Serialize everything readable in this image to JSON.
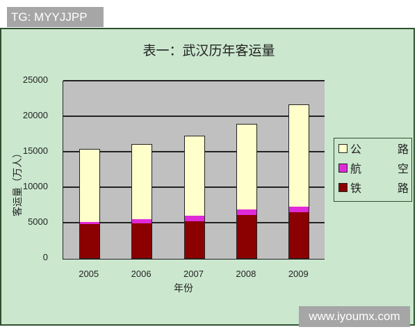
{
  "watermark_top": "TG: MYYJJPP",
  "watermark_bottom": "www.iyoumx.com",
  "colors": {
    "highway": "#ffffcc",
    "air": "#e02ad9",
    "rail": "#8b0000",
    "plot_bg": "#c0c0c0",
    "panel_bg": "#cbe8cf"
  },
  "legend": [
    {
      "name": "highway",
      "label_a": "公",
      "label_b": "路",
      "color": "#ffffcc"
    },
    {
      "name": "air",
      "label_a": "航",
      "label_b": "空",
      "color": "#e02ad9"
    },
    {
      "name": "rail",
      "label_a": "铁",
      "label_b": "路",
      "color": "#8b0000"
    }
  ],
  "chart_data": {
    "type": "bar",
    "stacked": true,
    "title": "表一：武汉历年客运量",
    "xlabel": "年份",
    "ylabel": "客运量（万人）",
    "categories": [
      "2005",
      "2006",
      "2007",
      "2008",
      "2009"
    ],
    "series": [
      {
        "name": "铁路",
        "values": [
          4800,
          4900,
          5200,
          6100,
          6500
        ]
      },
      {
        "name": "航空",
        "values": [
          300,
          600,
          800,
          800,
          800
        ]
      },
      {
        "name": "公路",
        "values": [
          10400,
          10700,
          11400,
          12100,
          14500
        ]
      }
    ],
    "totals": [
      15500,
      16200,
      17400,
      19000,
      21800
    ],
    "ylim": [
      0,
      25000
    ],
    "yticks": [
      "0",
      "5000",
      "10000",
      "15000",
      "20000",
      "25000"
    ],
    "grid": true,
    "legend_position": "right"
  }
}
